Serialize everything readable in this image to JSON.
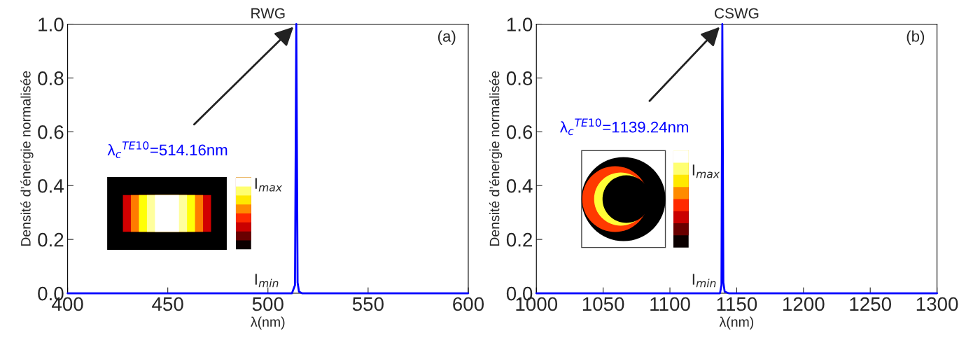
{
  "chart_data": [
    {
      "type": "line",
      "title": "RWG",
      "xlabel": "λ(nm)",
      "ylabel": "Densité d’énergie normalisée",
      "x": [
        400,
        500,
        512,
        513.5,
        514.16,
        514.8,
        515.5,
        517,
        600
      ],
      "series": [
        {
          "color": "#0000ff",
          "values": [
            0,
            0,
            0,
            0.03,
            1,
            0.04,
            0.006,
            0,
            0
          ]
        }
      ],
      "xlim": [
        400,
        600
      ],
      "xticks": [
        400,
        450,
        500,
        550,
        600
      ],
      "ylim": [
        0,
        1
      ],
      "yticks": [
        {
          "value": 0,
          "label": "0.0"
        },
        {
          "value": 0.2,
          "label": "0.2"
        },
        {
          "value": 0.4,
          "label": "0.4"
        },
        {
          "value": 0.6,
          "label": "0.6"
        },
        {
          "value": 0.8,
          "label": "0.8"
        },
        {
          "value": 1,
          "label": "1.0"
        }
      ],
      "grid": false,
      "legend": false,
      "annotations": [
        {
          "text": "λ$_{c}$$^{TE10}$=514.16nm",
          "x": 514.16,
          "y": 1
        },
        "(a)",
        "I$_{max}$",
        "I$_{min}$"
      ]
    },
    {
      "type": "line",
      "title": "CSWG",
      "xlabel": "λ(nm)",
      "ylabel": "Densité d’énergie normalisée",
      "x": [
        1000,
        1130,
        1137.5,
        1138.6,
        1139.24,
        1140,
        1141,
        1144,
        1300
      ],
      "series": [
        {
          "color": "#0000ff",
          "values": [
            0,
            0,
            0,
            0.03,
            1,
            0.04,
            0.006,
            0,
            0
          ]
        }
      ],
      "xlim": [
        1000,
        1300
      ],
      "xticks": [
        1000,
        1050,
        1100,
        1150,
        1200,
        1250,
        1300
      ],
      "ylim": [
        0,
        1
      ],
      "yticks": [
        {
          "value": 0,
          "label": "0.0"
        },
        {
          "value": 0.2,
          "label": "0.2"
        },
        {
          "value": 0.4,
          "label": "0.4"
        },
        {
          "value": 0.6,
          "label": "0.6"
        },
        {
          "value": 0.8,
          "label": "0.8"
        },
        {
          "value": 1,
          "label": "1.0"
        }
      ],
      "grid": false,
      "legend": false,
      "annotations": [
        {
          "text": "λ$_{c}$$^{TE10}$=1139.24nm",
          "x": 1139.24,
          "y": 1
        },
        "(b)",
        "I$_{max}$",
        "I$_{min}$"
      ]
    }
  ]
}
